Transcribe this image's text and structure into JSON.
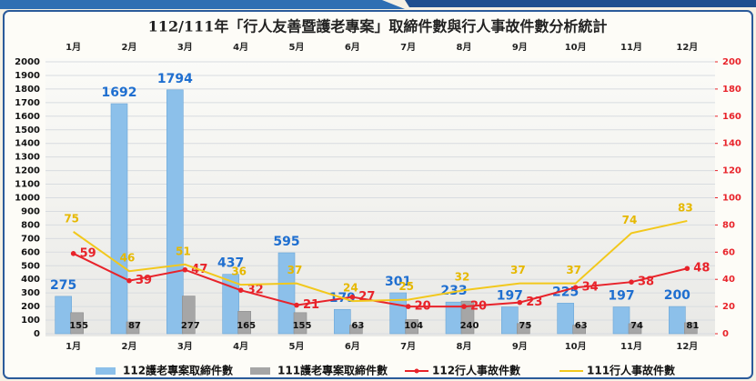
{
  "chart_data": {
    "type": "bar-line",
    "title": "112/111年「行人友善暨護老專案」取締件數與行人事故件數分析統計",
    "categories": [
      "1月",
      "2月",
      "3月",
      "4月",
      "5月",
      "6月",
      "7月",
      "8月",
      "9月",
      "10月",
      "11月",
      "12月"
    ],
    "series": [
      {
        "name": "112護老專案取締件數",
        "type": "bar",
        "color": "#8cc0ea",
        "values": [
          275,
          1692,
          1794,
          437,
          595,
          179,
          301,
          233,
          197,
          225,
          197,
          200
        ]
      },
      {
        "name": "111護老專案取締件數",
        "type": "bar",
        "color": "#a6a6a6",
        "values": [
          155,
          87,
          277,
          165,
          155,
          63,
          104,
          240,
          75,
          63,
          74,
          81
        ]
      },
      {
        "name": "112行人事故件數",
        "type": "line",
        "axis": "y2",
        "color": "#e8232a",
        "values": [
          59,
          39,
          47,
          32,
          21,
          27,
          20,
          20,
          23,
          34,
          38,
          48
        ]
      },
      {
        "name": "111行人事故件數",
        "type": "line",
        "axis": "y2",
        "color": "#f2c81c",
        "values": [
          75,
          46,
          51,
          36,
          37,
          24,
          25,
          32,
          37,
          37,
          74,
          83
        ]
      }
    ],
    "ylim": [
      0,
      2000
    ],
    "yticks": [
      0,
      100,
      200,
      300,
      400,
      500,
      600,
      700,
      800,
      900,
      1000,
      1100,
      1200,
      1300,
      1400,
      1500,
      1600,
      1700,
      1800,
      1900,
      2000
    ],
    "y2lim": [
      0,
      200
    ],
    "y2ticks": [
      0,
      20,
      40,
      60,
      80,
      100,
      120,
      140,
      160,
      180,
      200
    ],
    "grid": true,
    "legend": "bottom"
  }
}
